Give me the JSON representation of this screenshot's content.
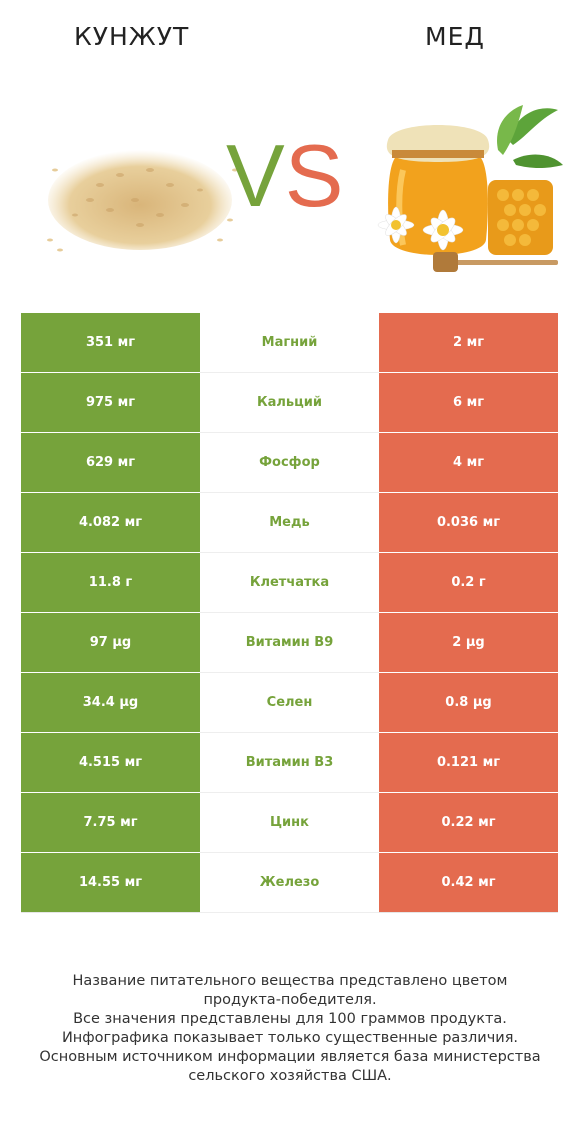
{
  "header": {
    "left_title": "КУНЖУТ",
    "right_title": "МЕД",
    "vs_v": "V",
    "vs_s": "S"
  },
  "colors": {
    "green": "#76a33b",
    "red": "#e46b4f"
  },
  "images": {
    "left": "sesame-seeds-image",
    "right": "honey-jar-image"
  },
  "rows": [
    {
      "left": "351 мг",
      "name": "Магний",
      "right": "2 мг"
    },
    {
      "left": "975 мг",
      "name": "Кальций",
      "right": "6 мг"
    },
    {
      "left": "629 мг",
      "name": "Фосфор",
      "right": "4 мг"
    },
    {
      "left": "4.082 мг",
      "name": "Медь",
      "right": "0.036 мг"
    },
    {
      "left": "11.8 г",
      "name": "Клетчатка",
      "right": "0.2 г"
    },
    {
      "left": "97 µg",
      "name": "Витамин B9",
      "right": "2 µg"
    },
    {
      "left": "34.4 µg",
      "name": "Селен",
      "right": "0.8 µg"
    },
    {
      "left": "4.515 мг",
      "name": "Витамин B3",
      "right": "0.121 мг"
    },
    {
      "left": "7.75 мг",
      "name": "Цинк",
      "right": "0.22 мг"
    },
    {
      "left": "14.55 мг",
      "name": "Железо",
      "right": "0.42 мг"
    }
  ],
  "footer": {
    "line1": "Название питательного вещества представлено цветом",
    "line2": "продукта-победителя.",
    "line3": "Все значения представлены для 100 граммов продукта.",
    "line4": "Инфографика показывает только существенные различия.",
    "line5": "Основным источником информации является база министерства",
    "line6": "сельского хозяйства США."
  }
}
